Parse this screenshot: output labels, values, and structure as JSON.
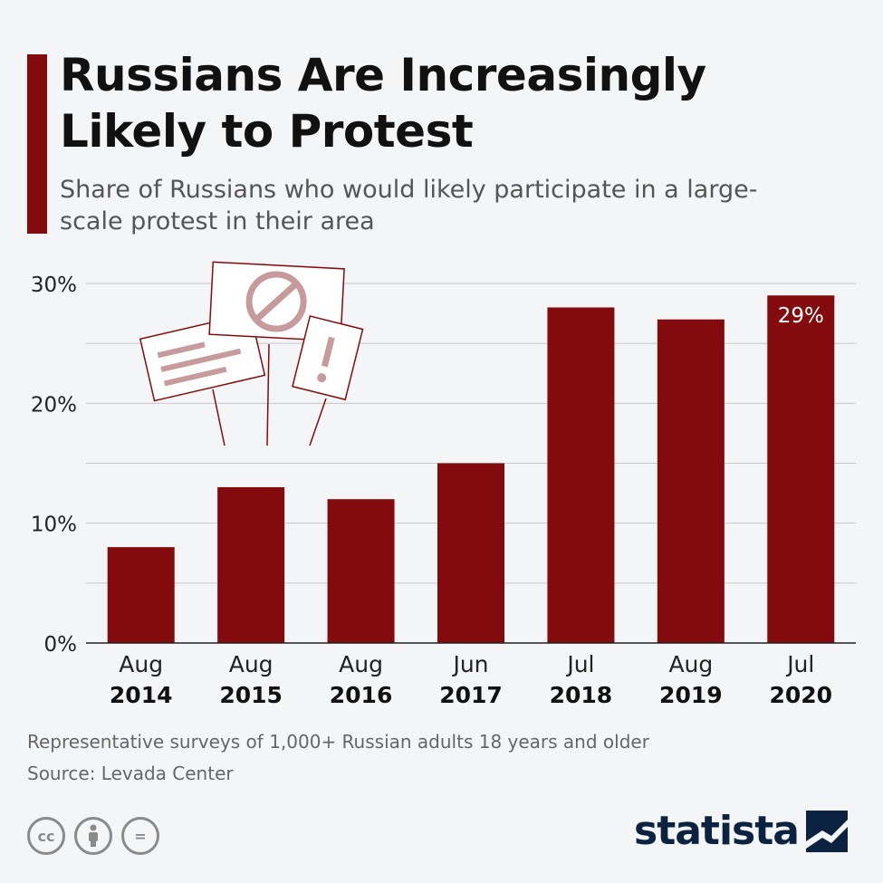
{
  "title": "Russians Are Increasingly Likely to Protest",
  "subtitle": "Share of Russians who would likely participate in a large-scale protest in their area",
  "footnote": "Representative surveys of 1,000+ Russian adults 18 years and older",
  "source": "Source: Levada Center",
  "brand": "statista",
  "icons": [
    "creative-commons-icon",
    "attribution-icon",
    "no-derivatives-icon",
    "protest-signs-illustration",
    "statista-logo-icon"
  ],
  "license_cc_text": "cc",
  "license_nd_text": "=",
  "colors": {
    "bar": "#840b0d",
    "accent": "#840b0d",
    "brand": "#0b2340",
    "grid": "#c8c8c8"
  },
  "chart_data": {
    "type": "bar",
    "categories": [
      {
        "month": "Aug",
        "year": "2014"
      },
      {
        "month": "Aug",
        "year": "2015"
      },
      {
        "month": "Aug",
        "year": "2016"
      },
      {
        "month": "Jun",
        "year": "2017"
      },
      {
        "month": "Jul",
        "year": "2018"
      },
      {
        "month": "Aug",
        "year": "2019"
      },
      {
        "month": "Jul",
        "year": "2020"
      }
    ],
    "values": [
      8,
      13,
      12,
      15,
      28,
      27,
      29
    ],
    "unit": "%",
    "ylim": [
      0,
      30
    ],
    "yticks": [
      "0%",
      "10%",
      "20%",
      "30%"
    ],
    "data_labels": [
      null,
      null,
      null,
      null,
      null,
      null,
      "29%"
    ],
    "grid": true,
    "legend": "none"
  }
}
